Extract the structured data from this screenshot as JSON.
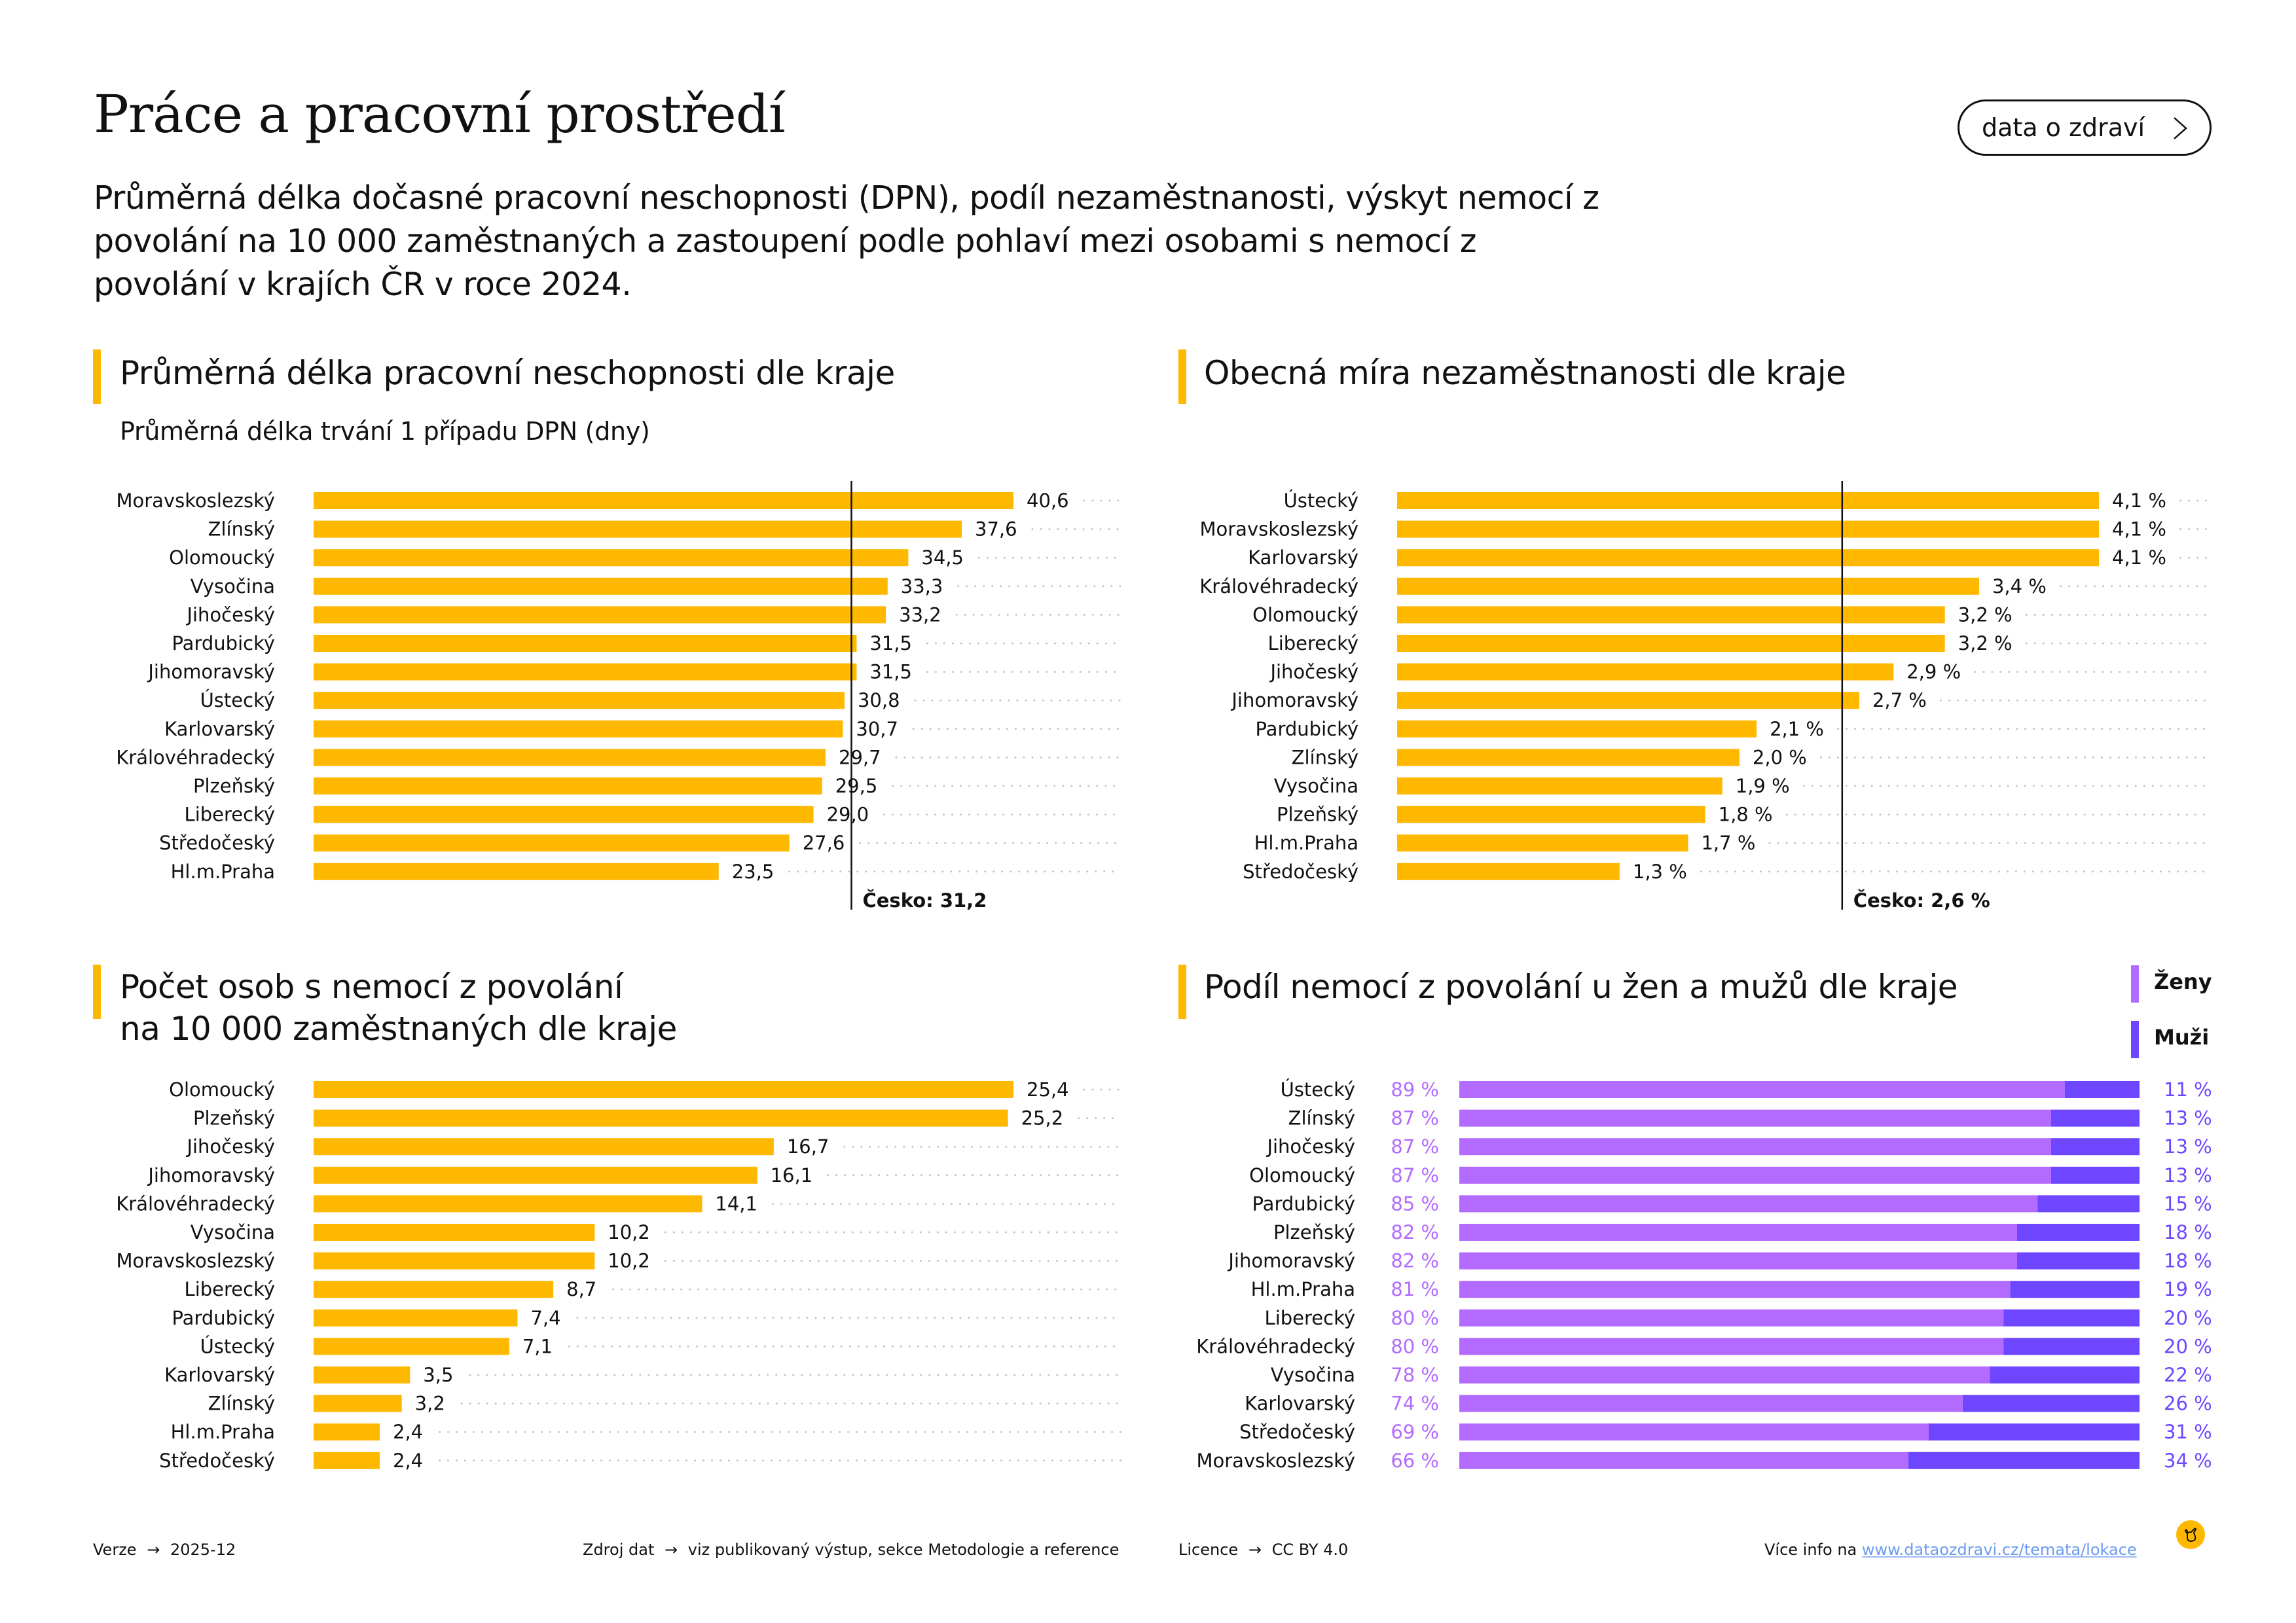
{
  "header": {
    "title": "Práce a pracovní prostředí",
    "description": "Průměrná délka dočasné pracovní neschopnosti (DPN), podíl nezaměstnanosti, výskyt nemocí z povolání na 10 000 zaměstnaných a zastoupení podle pohlaví mezi osobami s nemocí z povolání v krajích ČR v roce 2024.",
    "cta_label": "data o zdraví",
    "cta_icon": "chevron-right-icon"
  },
  "colors": {
    "bar": "#FFB800",
    "accent": "#FFB800",
    "women": "#B36BFF",
    "men": "#6E46FF",
    "dots": "#C4C4C4",
    "link": "#6B9BF2"
  },
  "chart_data": [
    {
      "type": "bar",
      "orientation": "horizontal",
      "title": "Průměrná délka pracovní neschopnosti dle kraje",
      "subtitle": "Průměrná délka trvání 1 případu DPN (dny)",
      "categories": [
        "Moravskoslezský",
        "Zlínský",
        "Olomoucký",
        "Vysočina",
        "Jihočeský",
        "Pardubický",
        "Jihomoravský",
        "Ústecký",
        "Karlovarský",
        "Královéhradecký",
        "Plzeňský",
        "Liberecký",
        "Středočeský",
        "Hl.m.Praha"
      ],
      "values": [
        40.6,
        37.6,
        34.5,
        33.3,
        33.2,
        31.5,
        31.5,
        30.8,
        30.7,
        29.7,
        29.5,
        29.0,
        27.6,
        23.5
      ],
      "value_labels": [
        "40,6",
        "37,6",
        "34,5",
        "33,3",
        "33,2",
        "31,5",
        "31,5",
        "30,8",
        "30,7",
        "29,7",
        "29,5",
        "29,0",
        "27,6",
        "23,5"
      ],
      "reference": {
        "value": 31.2,
        "label": "Česko: 31,2"
      },
      "xlim": [
        0,
        47
      ],
      "grid": false,
      "unit": "dny"
    },
    {
      "type": "bar",
      "orientation": "horizontal",
      "title": "Obecná míra nezaměstnanosti dle kraje",
      "subtitle": "",
      "categories": [
        "Ústecký",
        "Moravskoslezský",
        "Karlovarský",
        "Královéhradecký",
        "Olomoucký",
        "Liberecký",
        "Jihočeský",
        "Jihomoravský",
        "Pardubický",
        "Zlínský",
        "Vysočina",
        "Plzeňský",
        "Hl.m.Praha",
        "Středočeský"
      ],
      "values": [
        4.1,
        4.1,
        4.1,
        3.4,
        3.2,
        3.2,
        2.9,
        2.7,
        2.1,
        2.0,
        1.9,
        1.8,
        1.7,
        1.3
      ],
      "value_labels": [
        "4,1 %",
        "4,1 %",
        "4,1 %",
        "3,4 %",
        "3,2 %",
        "3,2 %",
        "2,9 %",
        "2,7 %",
        "2,1 %",
        "2,0 %",
        "1,9 %",
        "1,8 %",
        "1,7 %",
        "1,3 %"
      ],
      "reference": {
        "value": 2.6,
        "label": "Česko: 2,6 %"
      },
      "xlim": [
        0,
        4.7
      ],
      "grid": false,
      "unit": "%"
    },
    {
      "type": "bar",
      "orientation": "horizontal",
      "title": "Počet osob s nemocí z povolání na 10 000 zaměstnaných dle kraje",
      "title_lines": [
        "Počet osob s nemocí z povolání",
        "na 10 000 zaměstnaných dle kraje"
      ],
      "subtitle": "",
      "categories": [
        "Olomoucký",
        "Plzeňský",
        "Jihočeský",
        "Jihomoravský",
        "Královéhradecký",
        "Vysočina",
        "Moravskoslezský",
        "Liberecký",
        "Pardubický",
        "Ústecký",
        "Karlovarský",
        "Zlínský",
        "Hl.m.Praha",
        "Středočeský"
      ],
      "values": [
        25.4,
        25.2,
        16.7,
        16.1,
        14.1,
        10.2,
        10.2,
        8.7,
        7.4,
        7.1,
        3.5,
        3.2,
        2.4,
        2.4
      ],
      "value_labels": [
        "25,4",
        "25,2",
        "16,7",
        "16,1",
        "14,1",
        "10,2",
        "10,2",
        "8,7",
        "7,4",
        "7,1",
        "3,5",
        "3,2",
        "2,4",
        "2,4"
      ],
      "xlim": [
        0,
        29.4
      ],
      "grid": false
    },
    {
      "type": "bar",
      "orientation": "horizontal",
      "stacked": true,
      "title": "Podíl nemocí z povolání u žen a mužů dle kraje",
      "categories": [
        "Ústecký",
        "Zlínský",
        "Jihočeský",
        "Olomoucký",
        "Pardubický",
        "Plzeňský",
        "Jihomoravský",
        "Hl.m.Praha",
        "Liberecký",
        "Královéhradecký",
        "Vysočina",
        "Karlovarský",
        "Středočeský",
        "Moravskoslezský"
      ],
      "series": [
        {
          "name": "Ženy",
          "values": [
            89,
            87,
            87,
            87,
            85,
            82,
            82,
            81,
            80,
            80,
            78,
            74,
            69,
            66
          ],
          "value_labels": [
            "89 %",
            "87 %",
            "87 %",
            "87 %",
            "85 %",
            "82 %",
            "82 %",
            "81 %",
            "80 %",
            "80 %",
            "78 %",
            "74 %",
            "69 %",
            "66 %"
          ]
        },
        {
          "name": "Muži",
          "values": [
            11,
            13,
            13,
            13,
            15,
            18,
            18,
            19,
            20,
            20,
            22,
            26,
            31,
            34
          ],
          "value_labels": [
            "11 %",
            "13 %",
            "13 %",
            "13 %",
            "15 %",
            "18 %",
            "18 %",
            "19 %",
            "20 %",
            "20 %",
            "22 %",
            "26 %",
            "31 %",
            "34 %"
          ]
        }
      ],
      "xlim": [
        0,
        100
      ],
      "legend": {
        "position": "top-right",
        "entries": [
          "Ženy",
          "Muži"
        ]
      },
      "unit": "%"
    }
  ],
  "footer": {
    "version_label": "Verze",
    "version_value": "2025-12",
    "source_label": "Zdroj dat",
    "source_value": "viz publikovaný výstup, sekce Metodologie a reference",
    "licence_label": "Licence",
    "licence_value": "CC BY 4.0",
    "more_info_label": "Více info na",
    "more_info_link": "www.dataozdravi.cz/temata/lokace",
    "arrow": "→",
    "logo_icon": "pointing-hand-icon"
  }
}
